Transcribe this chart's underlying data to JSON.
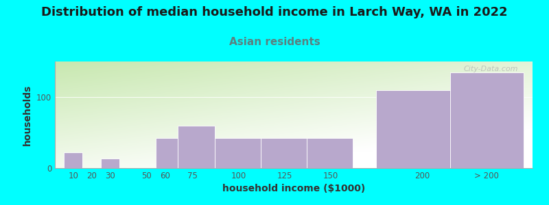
{
  "title": "Distribution of median household income in Larch Way, WA in 2022",
  "subtitle": "Asian residents",
  "xlabel": "household income ($1000)",
  "ylabel": "households",
  "background_color": "#00FFFF",
  "bar_color": "#b8a8cc",
  "bar_edge_color": "#c8b8d8",
  "tick_labels": [
    "10",
    "20",
    "30",
    "50",
    "60",
    "75",
    "100",
    "125",
    "150",
    "200",
    "> 200"
  ],
  "bar_lefts": [
    5,
    15,
    25,
    45,
    55,
    67,
    87,
    112,
    137,
    175,
    215
  ],
  "bar_rights": [
    15,
    25,
    35,
    55,
    67,
    87,
    112,
    137,
    162,
    215,
    255
  ],
  "tick_x": [
    10,
    20,
    30,
    50,
    60,
    75,
    100,
    125,
    150,
    200,
    235
  ],
  "values": [
    22,
    0,
    13,
    0,
    42,
    60,
    42,
    42,
    42,
    110,
    135
  ],
  "xlim": [
    0,
    260
  ],
  "ylim": [
    0,
    150
  ],
  "yticks": [
    0,
    100
  ],
  "watermark": "City-Data.com",
  "title_fontsize": 13,
  "subtitle_fontsize": 11,
  "axis_label_fontsize": 10,
  "tick_fontsize": 8.5,
  "subtitle_color": "#5a8080",
  "title_color": "#1a1a1a"
}
